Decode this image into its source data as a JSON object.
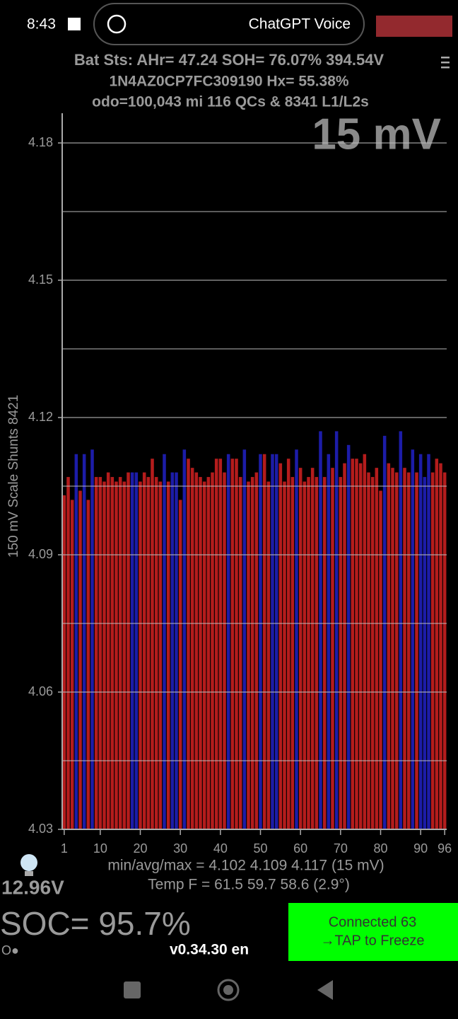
{
  "status_bar": {
    "time": "8:43",
    "app": "ChatGPT Voice"
  },
  "header": {
    "line1": "Bat Sts: AHr= 47.24 SOH= 76.07% 394.54V",
    "line2": "1N4AZ0CP7FC309190   Hx= 55.38%",
    "line3": "odo=100,043 mi  116 QCs & 8341 L1/L2s"
  },
  "chart_data": {
    "type": "bar",
    "scale_label": "15 mV",
    "ylabel": "150 mV Scale   Shunts 8421",
    "x": [
      1,
      2,
      3,
      4,
      5,
      6,
      7,
      8,
      9,
      10,
      11,
      12,
      13,
      14,
      15,
      16,
      17,
      18,
      19,
      20,
      21,
      22,
      23,
      24,
      25,
      26,
      27,
      28,
      29,
      30,
      31,
      32,
      33,
      34,
      35,
      36,
      37,
      38,
      39,
      40,
      41,
      42,
      43,
      44,
      45,
      46,
      47,
      48,
      49,
      50,
      51,
      52,
      53,
      54,
      55,
      56,
      57,
      58,
      59,
      60,
      61,
      62,
      63,
      64,
      65,
      66,
      67,
      68,
      69,
      70,
      71,
      72,
      73,
      74,
      75,
      76,
      77,
      78,
      79,
      80,
      81,
      82,
      83,
      84,
      85,
      86,
      87,
      88,
      89,
      90,
      91,
      92,
      93,
      94,
      95,
      96
    ],
    "values": [
      4.103,
      4.107,
      4.102,
      4.112,
      4.104,
      4.112,
      4.102,
      4.113,
      4.107,
      4.107,
      4.106,
      4.108,
      4.107,
      4.106,
      4.107,
      4.106,
      4.108,
      4.108,
      4.108,
      4.106,
      4.108,
      4.107,
      4.111,
      4.107,
      4.106,
      4.112,
      4.106,
      4.108,
      4.108,
      4.102,
      4.113,
      4.111,
      4.109,
      4.108,
      4.107,
      4.106,
      4.107,
      4.108,
      4.111,
      4.111,
      4.108,
      4.112,
      4.111,
      4.111,
      4.107,
      4.113,
      4.106,
      4.107,
      4.108,
      4.112,
      4.112,
      4.106,
      4.112,
      4.112,
      4.11,
      4.106,
      4.111,
      4.107,
      4.113,
      4.109,
      4.106,
      4.107,
      4.109,
      4.107,
      4.117,
      4.107,
      4.112,
      4.109,
      4.117,
      4.107,
      4.11,
      4.114,
      4.111,
      4.111,
      4.11,
      4.112,
      4.108,
      4.107,
      4.109,
      4.104,
      4.116,
      4.11,
      4.109,
      4.108,
      4.117,
      4.109,
      4.108,
      4.113,
      4.108,
      4.112,
      4.107,
      4.112,
      4.108,
      4.111,
      4.11,
      4.108
    ],
    "bar_colors": [
      "#b41c1c",
      "#b41c1c",
      "#b41c1c",
      "#1c1ca8",
      "#b41c1c",
      "#1c1ca8",
      "#b41c1c",
      "#1c1ca8",
      "#b41c1c",
      "#b41c1c",
      "#b41c1c",
      "#b41c1c",
      "#b41c1c",
      "#b41c1c",
      "#b41c1c",
      "#b41c1c",
      "#b41c1c",
      "#1c1ca8",
      "#1c1ca8",
      "#b41c1c",
      "#b41c1c",
      "#b41c1c",
      "#b41c1c",
      "#b41c1c",
      "#b41c1c",
      "#1c1ca8",
      "#b41c1c",
      "#1c1ca8",
      "#1c1ca8",
      "#b41c1c",
      "#1c1ca8",
      "#b41c1c",
      "#b41c1c",
      "#b41c1c",
      "#b41c1c",
      "#b41c1c",
      "#b41c1c",
      "#b41c1c",
      "#b41c1c",
      "#b41c1c",
      "#b41c1c",
      "#1c1ca8",
      "#b41c1c",
      "#b41c1c",
      "#b41c1c",
      "#1c1ca8",
      "#b41c1c",
      "#b41c1c",
      "#b41c1c",
      "#1c1ca8",
      "#b41c1c",
      "#b41c1c",
      "#1c1ca8",
      "#1c1ca8",
      "#b41c1c",
      "#b41c1c",
      "#b41c1c",
      "#b41c1c",
      "#1c1ca8",
      "#b41c1c",
      "#b41c1c",
      "#b41c1c",
      "#b41c1c",
      "#b41c1c",
      "#1c1ca8",
      "#b41c1c",
      "#1c1ca8",
      "#b41c1c",
      "#1c1ca8",
      "#b41c1c",
      "#b41c1c",
      "#1c1ca8",
      "#b41c1c",
      "#b41c1c",
      "#b41c1c",
      "#b41c1c",
      "#b41c1c",
      "#b41c1c",
      "#b41c1c",
      "#b41c1c",
      "#1c1ca8",
      "#b41c1c",
      "#b41c1c",
      "#b41c1c",
      "#1c1ca8",
      "#b41c1c",
      "#b41c1c",
      "#1c1ca8",
      "#b41c1c",
      "#1c1ca8",
      "#1c1ca8",
      "#1c1ca8",
      "#b41c1c",
      "#b41c1c",
      "#b41c1c",
      "#b41c1c"
    ],
    "xlim": [
      0.5,
      96.5
    ],
    "xticks": [
      1,
      10,
      20,
      30,
      40,
      50,
      60,
      70,
      80,
      90,
      96
    ],
    "ylim": [
      4.03,
      4.18
    ],
    "yticks": [
      4.03,
      4.06,
      4.09,
      4.12,
      4.15,
      4.18
    ],
    "ygrid_minor": [
      4.045,
      4.075,
      4.105,
      4.135,
      4.165
    ],
    "grid": true
  },
  "stats": {
    "minavgmax": "min/avg/max = 4.102 4.109 4.117  (15 mV)",
    "temp": "Temp F = 61.5  59.7  58.6  (2.9°)"
  },
  "footer": {
    "voltage": "12.96V",
    "soc": "SOC= 95.7%",
    "indicator": "O●",
    "version": "v0.34.30 en",
    "button_line1": "Connected 63",
    "button_line2": "→TAP to Freeze"
  }
}
